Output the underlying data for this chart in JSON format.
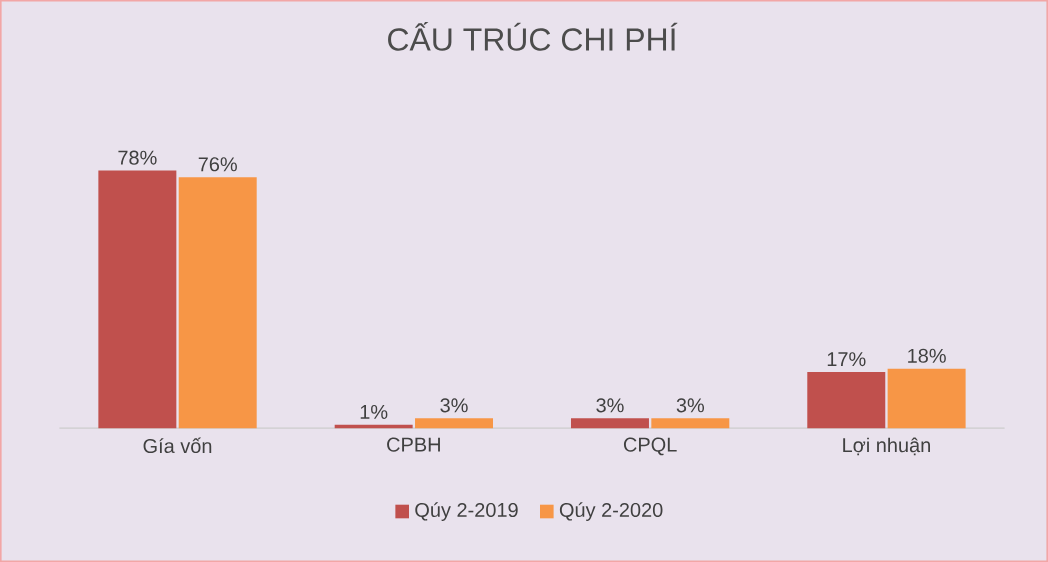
{
  "chart_data": {
    "type": "bar",
    "title": "CẤU TRÚC CHI PHÍ",
    "categories": [
      "Gía vốn",
      "CPBH",
      "CPQL",
      "Lợi nhuận"
    ],
    "series": [
      {
        "name": "Qúy 2-2019",
        "color": "#c0504d",
        "values": [
          78,
          1,
          3,
          17
        ],
        "value_labels": [
          "78%",
          "1%",
          "3%",
          "17%"
        ]
      },
      {
        "name": "Qúy 2-2020",
        "color": "#f79646",
        "values": [
          76,
          3,
          3,
          18
        ],
        "value_labels": [
          "76%",
          "3%",
          "3%",
          "18%"
        ]
      }
    ],
    "legend": "bottom"
  }
}
